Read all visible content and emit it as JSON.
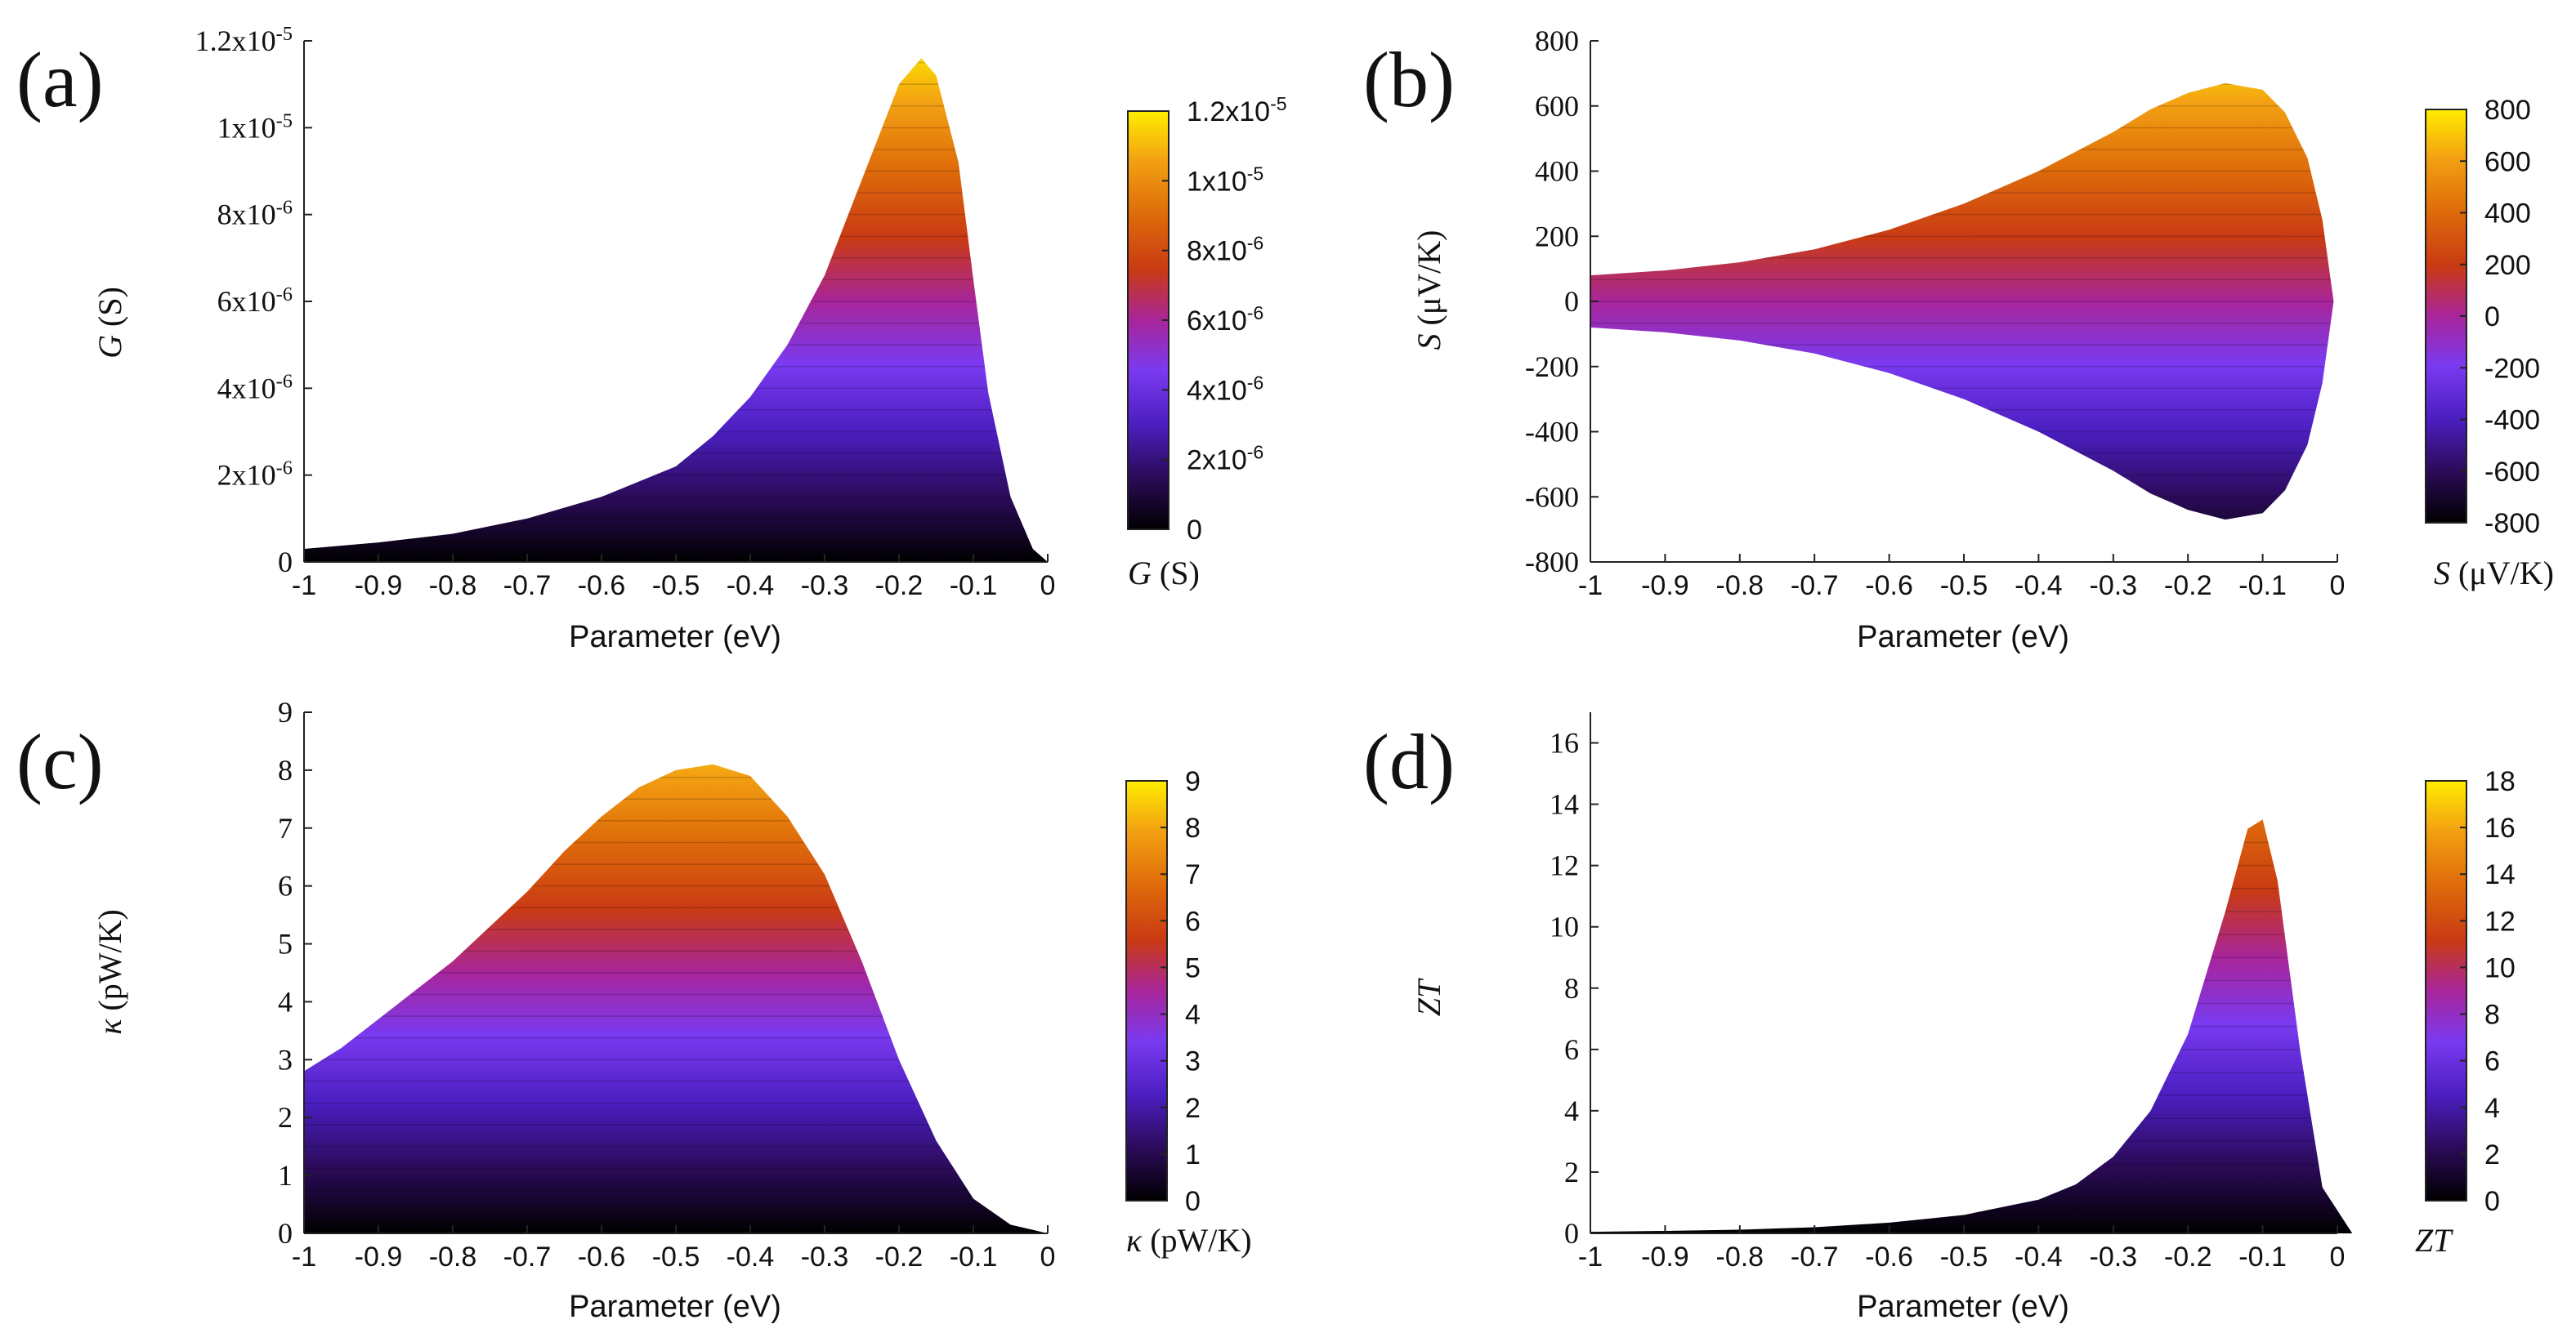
{
  "chart_data": [
    {
      "panel": "(a)",
      "type": "area",
      "shape": "peak",
      "title": "",
      "xlabel": "Parameter (eV)",
      "ylabel_var": "G",
      "ylabel_unit": " (S)",
      "xlim": [
        -1,
        0
      ],
      "ylim": [
        0,
        1.2e-05
      ],
      "x_ticks": [
        "-1",
        "-0.9",
        "-0.8",
        "-0.7",
        "-0.6",
        "-0.5",
        "-0.4",
        "-0.3",
        "-0.2",
        "-0.1",
        "0"
      ],
      "y_ticks": [
        {
          "value": 0,
          "label": "0"
        },
        {
          "value": 2e-06,
          "label": "2x10-6"
        },
        {
          "value": 4e-06,
          "label": "4x10-6"
        },
        {
          "value": 6e-06,
          "label": "6x10-6"
        },
        {
          "value": 8e-06,
          "label": "8x10-6"
        },
        {
          "value": 1e-05,
          "label": "1x10-5"
        },
        {
          "value": 1.2e-05,
          "label": "1.2x10-5"
        }
      ],
      "colorbar": {
        "var": "G",
        "unit": " (S)",
        "min": 0,
        "max": 1.2e-05,
        "ticks": [
          {
            "value": 0,
            "label": "0"
          },
          {
            "value": 2e-06,
            "label": "2x10-6"
          },
          {
            "value": 4e-06,
            "label": "4x10-6"
          },
          {
            "value": 6e-06,
            "label": "6x10-6"
          },
          {
            "value": 8e-06,
            "label": "8x10-6"
          },
          {
            "value": 1e-05,
            "label": "1x10-5"
          },
          {
            "value": 1.2e-05,
            "label": "1.2x10-5"
          }
        ]
      },
      "envelope": {
        "x": [
          -1,
          -0.9,
          -0.8,
          -0.7,
          -0.6,
          -0.5,
          -0.45,
          -0.4,
          -0.35,
          -0.3,
          -0.25,
          -0.2,
          -0.17,
          -0.15,
          -0.12,
          -0.1,
          -0.08,
          -0.05,
          -0.02,
          0
        ],
        "y": [
          3e-07,
          4.5e-07,
          6.5e-07,
          1e-06,
          1.5e-06,
          2.2e-06,
          2.9e-06,
          3.8e-06,
          5e-06,
          6.6e-06,
          8.8e-06,
          1.1e-05,
          1.16e-05,
          1.12e-05,
          9.2e-06,
          6.5e-06,
          3.9e-06,
          1.5e-06,
          3e-07,
          0
        ]
      }
    },
    {
      "panel": "(b)",
      "type": "area",
      "shape": "symmetric",
      "title": "",
      "xlabel": "Parameter (eV)",
      "ylabel_var": "S",
      "ylabel_unit": " (μV/K)",
      "xlim": [
        -1,
        0
      ],
      "ylim": [
        -800,
        800
      ],
      "x_ticks": [
        "-1",
        "-0.9",
        "-0.8",
        "-0.7",
        "-0.6",
        "-0.5",
        "-0.4",
        "-0.3",
        "-0.2",
        "-0.1",
        "0"
      ],
      "y_ticks": [
        {
          "value": -800,
          "label": "-800"
        },
        {
          "value": -600,
          "label": "-600"
        },
        {
          "value": -400,
          "label": "-400"
        },
        {
          "value": -200,
          "label": "-200"
        },
        {
          "value": 0,
          "label": "0"
        },
        {
          "value": 200,
          "label": "200"
        },
        {
          "value": 400,
          "label": "400"
        },
        {
          "value": 600,
          "label": "600"
        },
        {
          "value": 800,
          "label": "800"
        }
      ],
      "colorbar": {
        "var": "S",
        "unit": " (μV/K)",
        "min": -800,
        "max": 800,
        "ticks": [
          {
            "value": -800,
            "label": "-800"
          },
          {
            "value": -600,
            "label": "-600"
          },
          {
            "value": -400,
            "label": "-400"
          },
          {
            "value": -200,
            "label": "-200"
          },
          {
            "value": 0,
            "label": "0"
          },
          {
            "value": 200,
            "label": "200"
          },
          {
            "value": 400,
            "label": "400"
          },
          {
            "value": 600,
            "label": "600"
          },
          {
            "value": 800,
            "label": "800"
          }
        ]
      },
      "envelope": {
        "x": [
          -1,
          -0.9,
          -0.8,
          -0.7,
          -0.6,
          -0.5,
          -0.4,
          -0.3,
          -0.25,
          -0.2,
          -0.15,
          -0.1,
          -0.07,
          -0.04,
          -0.02,
          -0.005
        ],
        "y": [
          80,
          95,
          120,
          160,
          220,
          300,
          400,
          520,
          590,
          640,
          670,
          650,
          580,
          440,
          250,
          0
        ]
      }
    },
    {
      "panel": "(c)",
      "type": "area",
      "shape": "peak",
      "title": "",
      "xlabel": "Parameter (eV)",
      "ylabel_var": "κ",
      "ylabel_unit": " (pW/K)",
      "xlim": [
        -1,
        0
      ],
      "ylim": [
        0,
        9
      ],
      "x_ticks": [
        "-1",
        "-0.9",
        "-0.8",
        "-0.7",
        "-0.6",
        "-0.5",
        "-0.4",
        "-0.3",
        "-0.2",
        "-0.1",
        "0"
      ],
      "y_ticks": [
        {
          "value": 0,
          "label": "0"
        },
        {
          "value": 1,
          "label": "1"
        },
        {
          "value": 2,
          "label": "2"
        },
        {
          "value": 3,
          "label": "3"
        },
        {
          "value": 4,
          "label": "4"
        },
        {
          "value": 5,
          "label": "5"
        },
        {
          "value": 6,
          "label": "6"
        },
        {
          "value": 7,
          "label": "7"
        },
        {
          "value": 8,
          "label": "8"
        },
        {
          "value": 9,
          "label": "9"
        }
      ],
      "colorbar": {
        "var": "κ",
        "unit": " (pW/K)",
        "min": 0,
        "max": 9,
        "ticks": [
          {
            "value": 0,
            "label": "0"
          },
          {
            "value": 1,
            "label": "1"
          },
          {
            "value": 2,
            "label": "2"
          },
          {
            "value": 3,
            "label": "3"
          },
          {
            "value": 4,
            "label": "4"
          },
          {
            "value": 5,
            "label": "5"
          },
          {
            "value": 6,
            "label": "6"
          },
          {
            "value": 7,
            "label": "7"
          },
          {
            "value": 8,
            "label": "8"
          },
          {
            "value": 9,
            "label": "9"
          }
        ]
      },
      "envelope": {
        "x": [
          -1,
          -0.95,
          -0.9,
          -0.85,
          -0.8,
          -0.75,
          -0.7,
          -0.65,
          -0.6,
          -0.55,
          -0.5,
          -0.45,
          -0.4,
          -0.35,
          -0.3,
          -0.25,
          -0.2,
          -0.15,
          -0.1,
          -0.05,
          0
        ],
        "y": [
          2.8,
          3.2,
          3.7,
          4.2,
          4.7,
          5.3,
          5.9,
          6.6,
          7.2,
          7.7,
          8.0,
          8.1,
          7.9,
          7.2,
          6.2,
          4.7,
          3.0,
          1.6,
          0.6,
          0.15,
          0
        ]
      }
    },
    {
      "panel": "(d)",
      "type": "area",
      "shape": "peak",
      "title": "",
      "xlabel": "Parameter (eV)",
      "ylabel_var": "ZT",
      "ylabel_unit": "",
      "xlim": [
        -1,
        0
      ],
      "ylim": [
        0,
        17
      ],
      "x_ticks": [
        "-1",
        "-0.9",
        "-0.8",
        "-0.7",
        "-0.6",
        "-0.5",
        "-0.4",
        "-0.3",
        "-0.2",
        "-0.1",
        "0"
      ],
      "y_ticks": [
        {
          "value": 0,
          "label": "0"
        },
        {
          "value": 2,
          "label": "2"
        },
        {
          "value": 4,
          "label": "4"
        },
        {
          "value": 6,
          "label": "6"
        },
        {
          "value": 8,
          "label": "8"
        },
        {
          "value": 10,
          "label": "10"
        },
        {
          "value": 12,
          "label": "12"
        },
        {
          "value": 14,
          "label": "14"
        },
        {
          "value": 16,
          "label": "16"
        }
      ],
      "colorbar": {
        "var": "ZT",
        "unit": "",
        "min": 0,
        "max": 18,
        "ticks": [
          {
            "value": 0,
            "label": "0"
          },
          {
            "value": 2,
            "label": "2"
          },
          {
            "value": 4,
            "label": "4"
          },
          {
            "value": 6,
            "label": "6"
          },
          {
            "value": 8,
            "label": "8"
          },
          {
            "value": 10,
            "label": "10"
          },
          {
            "value": 12,
            "label": "12"
          },
          {
            "value": 14,
            "label": "14"
          },
          {
            "value": 16,
            "label": "16"
          },
          {
            "value": 18,
            "label": "18"
          }
        ]
      },
      "envelope": {
        "x": [
          -1,
          -0.9,
          -0.8,
          -0.7,
          -0.6,
          -0.5,
          -0.4,
          -0.35,
          -0.3,
          -0.25,
          -0.2,
          -0.15,
          -0.12,
          -0.1,
          -0.08,
          -0.05,
          -0.02,
          0.02
        ],
        "y": [
          0.05,
          0.08,
          0.12,
          0.2,
          0.35,
          0.6,
          1.1,
          1.6,
          2.5,
          4.0,
          6.5,
          10.5,
          13.2,
          13.5,
          11.5,
          6.0,
          1.5,
          0
        ]
      }
    }
  ]
}
